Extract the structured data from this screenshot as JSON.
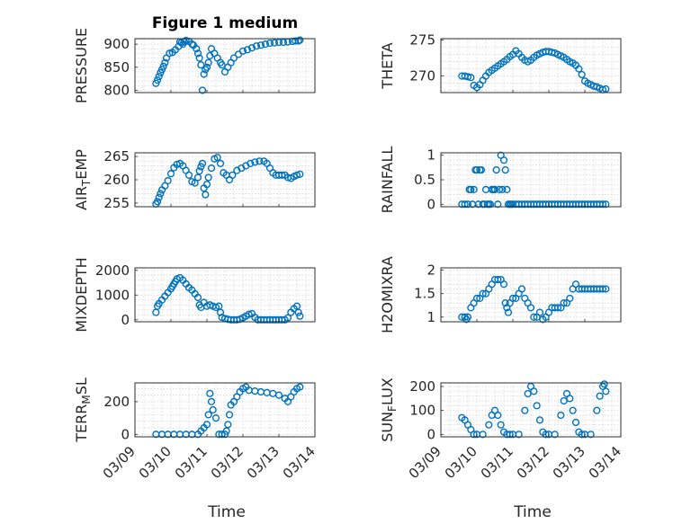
{
  "figure": {
    "title": "Figure 1 medium",
    "xlabel": "Time",
    "marker_color": "#0072BD",
    "marker_shape": "circle",
    "grid": true,
    "time_axis": {
      "range": [
        "03/09",
        "03/14"
      ],
      "ticks": [
        "03/09",
        "03/10",
        "03/11",
        "03/12",
        "03/13",
        "03/14"
      ],
      "tick_rotation_deg": -45
    }
  },
  "chart_data": [
    {
      "type": "scatter",
      "title": "Figure 1 medium",
      "ylabel": "PRESSURE",
      "ylim": [
        795,
        912
      ],
      "yticks": [
        "800",
        "850",
        "900"
      ],
      "x": [
        "03/09 14:00",
        "03/09 15:00",
        "03/09 16:00",
        "03/09 17:00",
        "03/09 18:00",
        "03/09 19:00",
        "03/09 20:00",
        "03/09 21:00",
        "03/09 23:00",
        "03/10 01:00",
        "03/10 03:00",
        "03/10 05:00",
        "03/10 06:00",
        "03/10 07:00",
        "03/10 08:00",
        "03/10 09:00",
        "03/10 10:00",
        "03/10 12:00",
        "03/10 14:00",
        "03/10 15:00",
        "03/10 17:00",
        "03/10 18:00",
        "03/10 19:00",
        "03/10 20:00",
        "03/10 21:00",
        "03/10 22:00",
        "03/10 23:00",
        "03/11 00:00",
        "03/11 01:00",
        "03/11 02:00",
        "03/11 03:00",
        "03/11 05:00",
        "03/11 07:00",
        "03/11 09:00",
        "03/11 10:00",
        "03/11 12:00",
        "03/11 14:00",
        "03/11 16:00",
        "03/11 18:00",
        "03/11 21:00",
        "03/12 00:00",
        "03/12 03:00",
        "03/12 06:00",
        "03/12 09:00",
        "03/12 12:00",
        "03/12 15:00",
        "03/12 18:00",
        "03/12 21:00",
        "03/13 00:00",
        "03/13 03:00",
        "03/13 06:00",
        "03/13 09:00",
        "03/13 11:00",
        "03/13 13:00",
        "03/13 14:00"
      ],
      "y": [
        815,
        822,
        830,
        838,
        845,
        852,
        860,
        870,
        880,
        882,
        888,
        895,
        905,
        903,
        900,
        905,
        908,
        906,
        900,
        898,
        890,
        880,
        870,
        855,
        800,
        835,
        845,
        850,
        860,
        875,
        890,
        880,
        870,
        860,
        855,
        840,
        850,
        860,
        870,
        878,
        885,
        888,
        892,
        896,
        898,
        900,
        902,
        903,
        904,
        904,
        905,
        906,
        907,
        907,
        909
      ]
    },
    {
      "type": "scatter",
      "ylabel": "THETA",
      "ylim": [
        267.7,
        275.2
      ],
      "yticks": [
        "270",
        "275"
      ],
      "x": [
        "03/09 14:00",
        "03/09 16:00",
        "03/09 18:00",
        "03/09 20:00",
        "03/09 22:00",
        "03/10 00:00",
        "03/10 02:00",
        "03/10 04:00",
        "03/10 06:00",
        "03/10 08:00",
        "03/10 10:00",
        "03/10 12:00",
        "03/10 14:00",
        "03/10 16:00",
        "03/10 18:00",
        "03/10 20:00",
        "03/10 22:00",
        "03/11 00:00",
        "03/11 02:00",
        "03/11 04:00",
        "03/11 06:00",
        "03/11 08:00",
        "03/11 10:00",
        "03/11 12:00",
        "03/11 14:00",
        "03/11 16:00",
        "03/11 18:00",
        "03/11 20:00",
        "03/11 22:00",
        "03/12 00:00",
        "03/12 02:00",
        "03/12 04:00",
        "03/12 06:00",
        "03/12 08:00",
        "03/12 10:00",
        "03/12 12:00",
        "03/12 14:00",
        "03/12 16:00",
        "03/12 18:00",
        "03/12 20:00",
        "03/12 22:00",
        "03/13 00:00",
        "03/13 02:00",
        "03/13 04:00",
        "03/13 06:00",
        "03/13 08:00",
        "03/13 10:00",
        "03/13 12:00",
        "03/13 14:00"
      ],
      "y": [
        270.0,
        270.0,
        269.9,
        269.8,
        268.7,
        268.4,
        268.8,
        269.4,
        270.0,
        270.5,
        270.8,
        271.1,
        271.4,
        271.7,
        272.0,
        272.3,
        272.7,
        273.0,
        273.5,
        273.1,
        272.6,
        272.2,
        272.0,
        272.2,
        272.6,
        272.9,
        273.1,
        273.3,
        273.4,
        273.4,
        273.3,
        273.2,
        273.0,
        272.8,
        272.6,
        272.3,
        272.0,
        271.8,
        271.5,
        271.0,
        270.2,
        269.3,
        269.0,
        268.8,
        268.6,
        268.5,
        268.3,
        268.1,
        268.2
      ]
    },
    {
      "type": "scatter",
      "ylabel": "AIR_TEMP",
      "ylabel_parts": [
        "AIR",
        "T",
        "EMP"
      ],
      "ylim": [
        254.2,
        265.8
      ],
      "yticks": [
        "255",
        "260",
        "265"
      ],
      "x": [
        "03/09 14:00",
        "03/09 15:00",
        "03/09 16:00",
        "03/09 17:00",
        "03/09 18:00",
        "03/09 20:00",
        "03/09 22:00",
        "03/10 00:00",
        "03/10 02:00",
        "03/10 04:00",
        "03/10 06:00",
        "03/10 08:00",
        "03/10 10:00",
        "03/10 12:00",
        "03/10 14:00",
        "03/10 16:00",
        "03/10 18:00",
        "03/10 19:00",
        "03/10 20:00",
        "03/10 21:00",
        "03/10 22:00",
        "03/10 23:00",
        "03/11 00:00",
        "03/11 01:00",
        "03/11 03:00",
        "03/11 05:00",
        "03/11 07:00",
        "03/11 09:00",
        "03/11 11:00",
        "03/11 13:00",
        "03/11 15:00",
        "03/11 17:00",
        "03/11 20:00",
        "03/11 23:00",
        "03/12 02:00",
        "03/12 05:00",
        "03/12 08:00",
        "03/12 11:00",
        "03/12 14:00",
        "03/12 16:00",
        "03/12 18:00",
        "03/12 20:00",
        "03/12 22:00",
        "03/13 00:00",
        "03/13 02:00",
        "03/13 04:00",
        "03/13 06:00",
        "03/13 08:00",
        "03/13 10:00",
        "03/13 12:00",
        "03/13 14:00"
      ],
      "y": [
        254.8,
        255.3,
        256.2,
        257.0,
        257.8,
        258.7,
        259.8,
        261.3,
        262.6,
        263.3,
        263.5,
        263.0,
        262.0,
        261.0,
        259.6,
        259.3,
        260.5,
        261.9,
        262.8,
        263.5,
        258.2,
        256.8,
        259.0,
        260.5,
        262.5,
        264.5,
        264.8,
        263.5,
        261.5,
        261.0,
        260.0,
        261.0,
        262.0,
        262.5,
        263.0,
        263.5,
        263.8,
        264.0,
        264.0,
        263.5,
        262.5,
        261.5,
        261.0,
        261.0,
        261.0,
        261.0,
        260.5,
        260.3,
        260.7,
        261.0,
        261.2
      ]
    },
    {
      "type": "scatter",
      "ylabel": "RAINFALL",
      "ylim": [
        -0.05,
        1.05
      ],
      "yticks": [
        "0",
        "0.5",
        "1"
      ],
      "x": [
        "03/09 14:00",
        "03/09 16:00",
        "03/09 18:00",
        "03/09 19:00",
        "03/09 20:00",
        "03/09 21:00",
        "03/09 22:00",
        "03/09 23:00",
        "03/10 00:00",
        "03/10 01:00",
        "03/10 02:00",
        "03/10 03:00",
        "03/10 04:00",
        "03/10 05:00",
        "03/10 06:00",
        "03/10 07:00",
        "03/10 08:00",
        "03/10 09:00",
        "03/10 10:00",
        "03/10 11:00",
        "03/10 12:00",
        "03/10 13:00",
        "03/10 14:00",
        "03/10 15:00",
        "03/10 16:00",
        "03/10 17:00",
        "03/10 18:00",
        "03/10 19:00",
        "03/10 20:00",
        "03/10 21:00",
        "03/10 22:00",
        "03/10 23:00",
        "03/11 00:00",
        "03/11 02:00",
        "03/11 04:00",
        "03/11 06:00",
        "03/11 08:00",
        "03/11 10:00",
        "03/11 12:00",
        "03/11 14:00",
        "03/11 16:00",
        "03/11 18:00",
        "03/11 20:00",
        "03/11 22:00",
        "03/12 00:00",
        "03/12 02:00",
        "03/12 04:00",
        "03/12 06:00",
        "03/12 08:00",
        "03/12 10:00",
        "03/12 12:00",
        "03/12 14:00",
        "03/12 16:00",
        "03/12 18:00",
        "03/12 20:00",
        "03/12 22:00",
        "03/13 00:00",
        "03/13 02:00",
        "03/13 04:00",
        "03/13 06:00",
        "03/13 08:00",
        "03/13 10:00",
        "03/13 12:00",
        "03/13 14:00"
      ],
      "y": [
        0,
        0,
        0,
        0.3,
        0.3,
        0,
        0.3,
        0.7,
        0.7,
        0,
        0.7,
        0.7,
        0,
        0,
        0.3,
        0,
        0,
        0,
        0.3,
        0.3,
        0.3,
        0.7,
        0,
        0.3,
        1.0,
        0.3,
        0.9,
        0.7,
        0.3,
        0,
        0,
        0,
        0,
        0,
        0,
        0,
        0,
        0,
        0,
        0,
        0,
        0,
        0,
        0,
        0,
        0,
        0,
        0,
        0,
        0,
        0,
        0,
        0,
        0,
        0,
        0,
        0,
        0,
        0,
        0,
        0,
        0,
        0,
        0
      ]
    },
    {
      "type": "scatter",
      "ylabel": "MIXDEPTH",
      "ylim": [
        -80,
        2100
      ],
      "yticks": [
        "0",
        "1000",
        "2000"
      ],
      "x": [
        "03/09 14:00",
        "03/09 15:00",
        "03/09 16:00",
        "03/09 18:00",
        "03/09 20:00",
        "03/09 22:00",
        "03/10 00:00",
        "03/10 01:00",
        "03/10 02:00",
        "03/10 03:00",
        "03/10 04:00",
        "03/10 06:00",
        "03/10 08:00",
        "03/10 10:00",
        "03/10 12:00",
        "03/10 14:00",
        "03/10 16:00",
        "03/10 18:00",
        "03/10 19:00",
        "03/10 20:00",
        "03/10 22:00",
        "03/11 00:00",
        "03/11 02:00",
        "03/11 04:00",
        "03/11 06:00",
        "03/11 08:00",
        "03/11 09:00",
        "03/11 10:00",
        "03/11 12:00",
        "03/11 14:00",
        "03/11 16:00",
        "03/11 18:00",
        "03/11 20:00",
        "03/11 22:00",
        "03/12 00:00",
        "03/12 02:00",
        "03/12 04:00",
        "03/12 06:00",
        "03/12 08:00",
        "03/12 10:00",
        "03/12 12:00",
        "03/12 14:00",
        "03/12 16:00",
        "03/12 18:00",
        "03/12 20:00",
        "03/12 22:00",
        "03/13 00:00",
        "03/13 02:00",
        "03/13 04:00",
        "03/13 06:00",
        "03/13 08:00",
        "03/13 10:00",
        "03/13 12:00",
        "03/13 13:00",
        "03/13 14:00"
      ],
      "y": [
        300,
        550,
        650,
        800,
        950,
        1100,
        1250,
        1350,
        1450,
        1550,
        1650,
        1700,
        1600,
        1450,
        1300,
        1200,
        1050,
        900,
        600,
        500,
        700,
        550,
        600,
        550,
        500,
        550,
        300,
        100,
        50,
        20,
        0,
        0,
        0,
        20,
        80,
        150,
        220,
        250,
        100,
        0,
        0,
        0,
        0,
        0,
        0,
        0,
        0,
        0,
        0,
        80,
        300,
        450,
        550,
        300,
        150
      ]
    },
    {
      "type": "scatter",
      "ylabel": "H2OMIXRA",
      "ylim": [
        0.9,
        2.05
      ],
      "yticks": [
        "1",
        "1.5",
        "2"
      ],
      "x": [
        "03/09 14:00",
        "03/09 16:00",
        "03/09 17:00",
        "03/09 18:00",
        "03/09 20:00",
        "03/09 22:00",
        "03/10 00:00",
        "03/10 02:00",
        "03/10 04:00",
        "03/10 06:00",
        "03/10 08:00",
        "03/10 10:00",
        "03/10 12:00",
        "03/10 14:00",
        "03/10 16:00",
        "03/10 18:00",
        "03/10 19:00",
        "03/10 20:00",
        "03/10 21:00",
        "03/10 22:00",
        "03/11 00:00",
        "03/11 02:00",
        "03/11 04:00",
        "03/11 06:00",
        "03/11 08:00",
        "03/11 10:00",
        "03/11 12:00",
        "03/11 14:00",
        "03/11 16:00",
        "03/11 18:00",
        "03/11 20:00",
        "03/11 22:00",
        "03/12 00:00",
        "03/12 02:00",
        "03/12 04:00",
        "03/12 06:00",
        "03/12 08:00",
        "03/12 10:00",
        "03/12 12:00",
        "03/12 14:00",
        "03/12 16:00",
        "03/12 18:00",
        "03/12 20:00",
        "03/12 22:00",
        "03/13 00:00",
        "03/13 02:00",
        "03/13 04:00",
        "03/13 06:00",
        "03/13 08:00",
        "03/13 10:00",
        "03/13 12:00",
        "03/13 14:00"
      ],
      "y": [
        1.0,
        1.0,
        0.95,
        1.0,
        1.2,
        1.3,
        1.4,
        1.4,
        1.5,
        1.5,
        1.6,
        1.7,
        1.8,
        1.8,
        1.8,
        1.7,
        1.3,
        1.2,
        1.1,
        1.3,
        1.4,
        1.4,
        1.5,
        1.6,
        1.4,
        1.3,
        1.2,
        1.0,
        1.0,
        1.1,
        0.95,
        1.0,
        1.1,
        1.2,
        1.2,
        1.2,
        1.2,
        1.3,
        1.3,
        1.4,
        1.6,
        1.7,
        1.6,
        1.6,
        1.6,
        1.6,
        1.6,
        1.6,
        1.6,
        1.6,
        1.6,
        1.6
      ]
    },
    {
      "type": "scatter",
      "ylabel": "TERR_MSL",
      "ylabel_parts": [
        "TERR",
        "M",
        "SL"
      ],
      "ylim": [
        -15,
        315
      ],
      "yticks": [
        "0",
        "200"
      ],
      "x": [
        "03/09 14:00",
        "03/09 18:00",
        "03/09 22:00",
        "03/10 02:00",
        "03/10 06:00",
        "03/10 10:00",
        "03/10 14:00",
        "03/10 18:00",
        "03/10 20:00",
        "03/10 22:00",
        "03/11 00:00",
        "03/11 01:00",
        "03/11 02:00",
        "03/11 03:00",
        "03/11 04:00",
        "03/11 06:00",
        "03/11 08:00",
        "03/11 10:00",
        "03/11 12:00",
        "03/11 13:00",
        "03/11 14:00",
        "03/11 15:00",
        "03/11 16:00",
        "03/11 18:00",
        "03/11 20:00",
        "03/11 22:00",
        "03/12 00:00",
        "03/12 02:00",
        "03/12 04:00",
        "03/12 08:00",
        "03/12 12:00",
        "03/12 16:00",
        "03/12 20:00",
        "03/13 00:00",
        "03/13 04:00",
        "03/13 06:00",
        "03/13 08:00",
        "03/13 10:00",
        "03/13 12:00",
        "03/13 14:00"
      ],
      "y": [
        0,
        0,
        0,
        0,
        0,
        0,
        0,
        0,
        20,
        40,
        60,
        120,
        250,
        200,
        150,
        100,
        0,
        0,
        0,
        20,
        60,
        120,
        180,
        200,
        230,
        260,
        280,
        290,
        270,
        265,
        260,
        255,
        250,
        240,
        220,
        200,
        230,
        260,
        280,
        290
      ]
    },
    {
      "type": "scatter",
      "ylabel": "SUN_FLUX",
      "ylabel_parts": [
        "SUN",
        "F",
        "LUX"
      ],
      "ylim": [
        -10,
        215
      ],
      "yticks": [
        "0",
        "100",
        "200"
      ],
      "x": [
        "03/09 14:00",
        "03/09 16:00",
        "03/09 18:00",
        "03/09 20:00",
        "03/09 22:00",
        "03/10 00:00",
        "03/10 04:00",
        "03/10 08:00",
        "03/10 10:00",
        "03/10 12:00",
        "03/10 14:00",
        "03/10 16:00",
        "03/10 18:00",
        "03/10 20:00",
        "03/10 22:00",
        "03/11 00:00",
        "03/11 04:00",
        "03/11 08:00",
        "03/11 10:00",
        "03/11 12:00",
        "03/11 14:00",
        "03/11 16:00",
        "03/11 18:00",
        "03/11 20:00",
        "03/11 22:00",
        "03/12 00:00",
        "03/12 04:00",
        "03/12 08:00",
        "03/12 10:00",
        "03/12 12:00",
        "03/12 14:00",
        "03/12 16:00",
        "03/12 18:00",
        "03/12 20:00",
        "03/12 22:00",
        "03/13 00:00",
        "03/13 04:00",
        "03/13 08:00",
        "03/13 10:00",
        "03/13 12:00",
        "03/13 13:00",
        "03/13 14:00"
      ],
      "y": [
        70,
        60,
        40,
        20,
        0,
        0,
        0,
        40,
        80,
        100,
        80,
        40,
        10,
        0,
        0,
        0,
        0,
        100,
        170,
        200,
        180,
        120,
        60,
        10,
        0,
        0,
        0,
        80,
        140,
        170,
        150,
        100,
        50,
        10,
        0,
        0,
        0,
        100,
        160,
        200,
        210,
        180
      ]
    }
  ]
}
